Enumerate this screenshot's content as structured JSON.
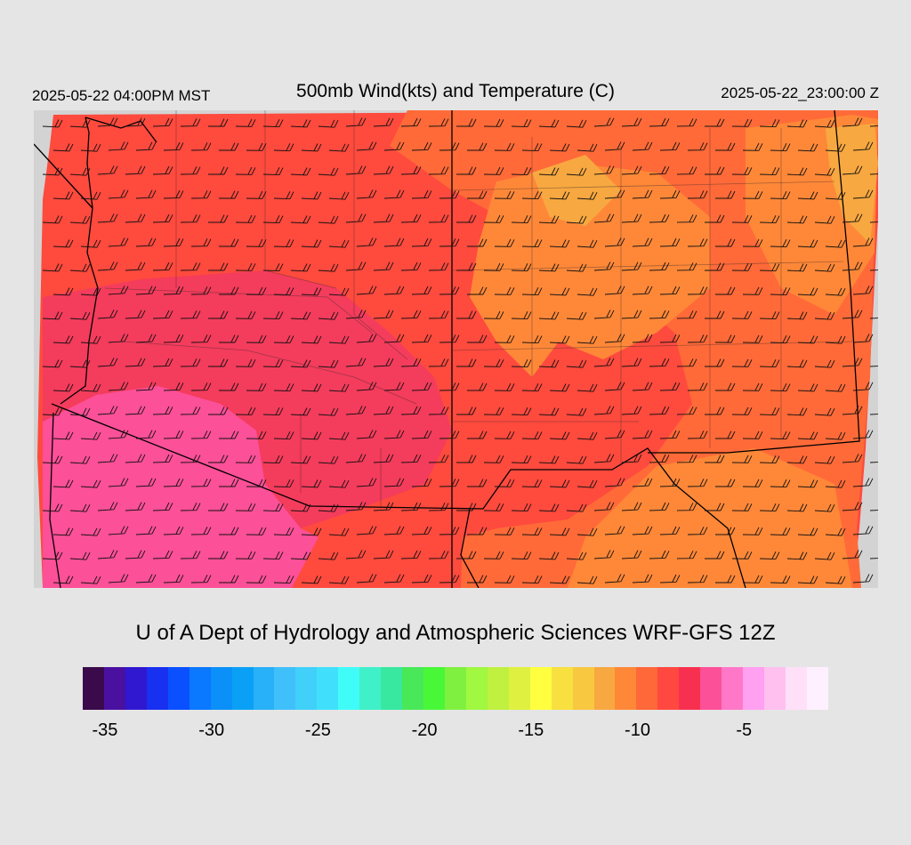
{
  "header": {
    "title": "500mb Wind(kts) and Temperature (C)",
    "valid_local": "2025-05-22 04:00PM MST",
    "valid_utc": "2025-05-22_23:00:00 Z"
  },
  "credit": "U of A Dept of Hydrology and Atmospheric Sciences WRF-GFS 12Z",
  "colorbar": {
    "colors": [
      "#3a0a4a",
      "#4a10a0",
      "#3018d0",
      "#1830f0",
      "#0a50ff",
      "#0a78ff",
      "#0a90f8",
      "#0aa0f5",
      "#28b0f8",
      "#40c0fa",
      "#40d0fa",
      "#40e0fc",
      "#40fcf8",
      "#40f0c8",
      "#38e8a0",
      "#48e858",
      "#48f838",
      "#80f040",
      "#a0f840",
      "#c0f040",
      "#e0f040",
      "#ffff40",
      "#f8e040",
      "#f8c840",
      "#f8a840",
      "#ff8838",
      "#ff6838",
      "#ff4840",
      "#f83050",
      "#fc5098",
      "#ff78c8",
      "#ffa0f0",
      "#ffc0f0",
      "#ffe0f8",
      "#fff0ff"
    ],
    "ticks": [
      {
        "label": "-35",
        "value": -35
      },
      {
        "label": "-30",
        "value": -30
      },
      {
        "label": "-25",
        "value": -25
      },
      {
        "label": "-20",
        "value": -20
      },
      {
        "label": "-15",
        "value": -15
      },
      {
        "label": "-10",
        "value": -10
      },
      {
        "label": "-5",
        "value": -5
      }
    ]
  },
  "map": {
    "colors": {
      "frame": "#d3d3d3",
      "cool_core": "#fc4c9c",
      "mid": "#f43c5c",
      "base": "#ff4a3e",
      "warm": "#ff6a38",
      "warmer": "#ff8838",
      "hot": "#f8a840",
      "borders": "#000000"
    }
  }
}
